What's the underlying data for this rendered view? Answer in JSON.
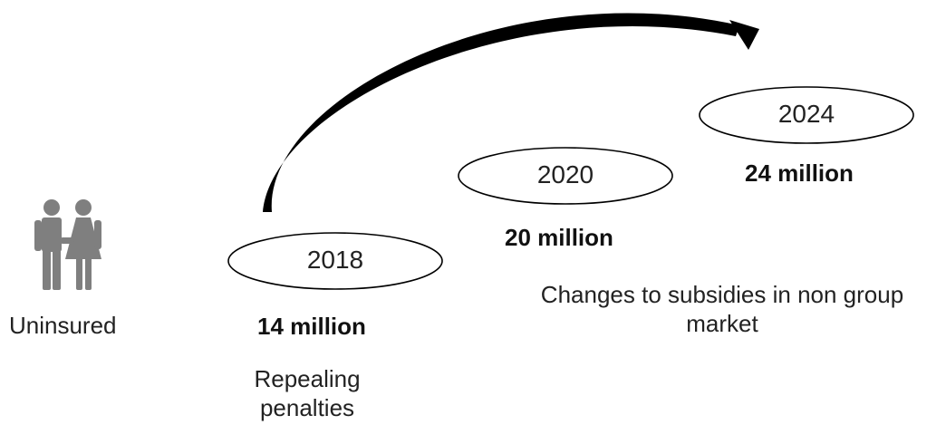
{
  "subject": {
    "label": "Uninsured",
    "icon": "couple-icon",
    "icon_color": "#7f7f7f"
  },
  "milestones": [
    {
      "year": "2018",
      "amount": "14 million"
    },
    {
      "year": "2020",
      "amount": "20 million"
    },
    {
      "year": "2024",
      "amount": "24 million"
    }
  ],
  "causes": {
    "repeal": [
      "Repealing",
      "penalties"
    ],
    "subsidies": [
      "Changes to subsidies in non group",
      "market"
    ]
  },
  "colors": {
    "text": "#222222",
    "outline": "#000000",
    "arrow": "#000000"
  }
}
